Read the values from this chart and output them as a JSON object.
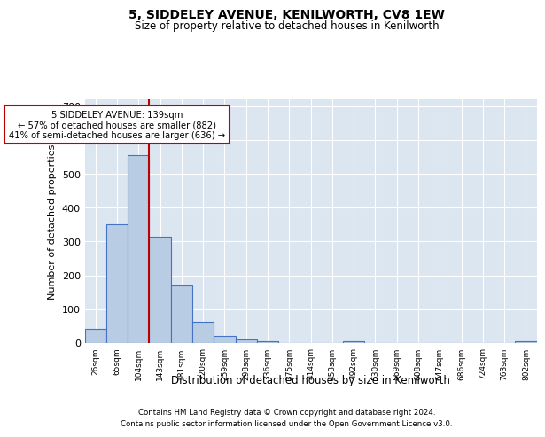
{
  "title": "5, SIDDELEY AVENUE, KENILWORTH, CV8 1EW",
  "subtitle": "Size of property relative to detached houses in Kenilworth",
  "xlabel": "Distribution of detached houses by size in Kenilworth",
  "ylabel": "Number of detached properties",
  "categories": [
    "26sqm",
    "65sqm",
    "104sqm",
    "143sqm",
    "181sqm",
    "220sqm",
    "259sqm",
    "298sqm",
    "336sqm",
    "375sqm",
    "414sqm",
    "453sqm",
    "492sqm",
    "530sqm",
    "569sqm",
    "608sqm",
    "647sqm",
    "686sqm",
    "724sqm",
    "763sqm",
    "802sqm"
  ],
  "values": [
    42,
    350,
    555,
    313,
    170,
    62,
    22,
    10,
    5,
    0,
    0,
    0,
    5,
    0,
    0,
    0,
    0,
    0,
    0,
    0,
    5
  ],
  "bar_color": "#b8cce4",
  "bar_edge_color": "#4472c4",
  "highlight_line_color": "#c00000",
  "annotation_line1": "5 SIDDELEY AVENUE: 139sqm",
  "annotation_line2": "← 57% of detached houses are smaller (882)",
  "annotation_line3": "41% of semi-detached houses are larger (636) →",
  "annotation_box_color": "#c00000",
  "ylim": [
    0,
    720
  ],
  "yticks": [
    0,
    100,
    200,
    300,
    400,
    500,
    600,
    700
  ],
  "bg_color": "#ffffff",
  "grid_color": "#dce6f1",
  "footer_line1": "Contains HM Land Registry data © Crown copyright and database right 2024.",
  "footer_line2": "Contains public sector information licensed under the Open Government Licence v3.0."
}
